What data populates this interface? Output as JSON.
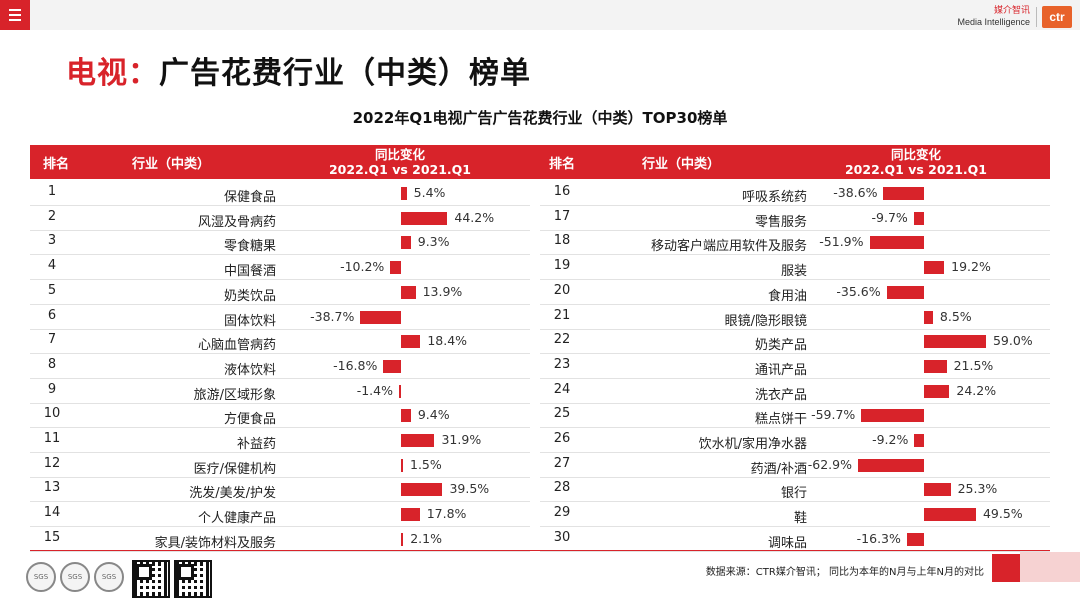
{
  "header": {
    "brand_cn": "媒介智讯",
    "brand_en": "Media Intelligence",
    "logo_text": "ctr"
  },
  "page_title": {
    "prefix": "电视：",
    "main": "广告花费行业（中类）榜单"
  },
  "chart_title": "2022年Q1电视广告广告花费行业（中类）TOP30榜单",
  "table": {
    "col_rank": "排名",
    "col_category": "行业（中类）",
    "col_change_line1": "同比变化",
    "col_change_line2": "2022.Q1 vs 2021.Q1"
  },
  "chart_data": {
    "type": "bar",
    "title": "2022年Q1电视广告广告花费行业（中类）TOP30榜单",
    "ylabel": "同比变化 2022.Q1 vs 2021.Q1",
    "ylim": [
      -70,
      70
    ],
    "left": [
      {
        "rank": "1",
        "category": "保健食品",
        "value": 5.4,
        "label": "5.4%"
      },
      {
        "rank": "2",
        "category": "风湿及骨病药",
        "value": 44.2,
        "label": "44.2%"
      },
      {
        "rank": "3",
        "category": "零食糖果",
        "value": 9.3,
        "label": "9.3%"
      },
      {
        "rank": "4",
        "category": "中国餐酒",
        "value": -10.2,
        "label": "-10.2%"
      },
      {
        "rank": "5",
        "category": "奶类饮品",
        "value": 13.9,
        "label": "13.9%"
      },
      {
        "rank": "6",
        "category": "固体饮料",
        "value": -38.7,
        "label": "-38.7%"
      },
      {
        "rank": "7",
        "category": "心脑血管病药",
        "value": 18.4,
        "label": "18.4%"
      },
      {
        "rank": "8",
        "category": "液体饮料",
        "value": -16.8,
        "label": "-16.8%"
      },
      {
        "rank": "9",
        "category": "旅游/区域形象",
        "value": -1.4,
        "label": "-1.4%"
      },
      {
        "rank": "10",
        "category": "方便食品",
        "value": 9.4,
        "label": "9.4%"
      },
      {
        "rank": "11",
        "category": "补益药",
        "value": 31.9,
        "label": "31.9%"
      },
      {
        "rank": "12",
        "category": "医疗/保健机构",
        "value": 1.5,
        "label": "1.5%"
      },
      {
        "rank": "13",
        "category": "洗发/美发/护发",
        "value": 39.5,
        "label": "39.5%"
      },
      {
        "rank": "14",
        "category": "个人健康产品",
        "value": 17.8,
        "label": "17.8%"
      },
      {
        "rank": "15",
        "category": "家具/装饰材料及服务",
        "value": 2.1,
        "label": "2.1%"
      }
    ],
    "right": [
      {
        "rank": "16",
        "category": "呼吸系统药",
        "value": -38.6,
        "label": "-38.6%"
      },
      {
        "rank": "17",
        "category": "零售服务",
        "value": -9.7,
        "label": "-9.7%"
      },
      {
        "rank": "18",
        "category": "移动客户端应用软件及服务",
        "value": -51.9,
        "label": "-51.9%"
      },
      {
        "rank": "19",
        "category": "服装",
        "value": 19.2,
        "label": "19.2%"
      },
      {
        "rank": "20",
        "category": "食用油",
        "value": -35.6,
        "label": "-35.6%"
      },
      {
        "rank": "21",
        "category": "眼镜/隐形眼镜",
        "value": 8.5,
        "label": "8.5%"
      },
      {
        "rank": "22",
        "category": "奶类产品",
        "value": 59.0,
        "label": "59.0%"
      },
      {
        "rank": "23",
        "category": "通讯产品",
        "value": 21.5,
        "label": "21.5%"
      },
      {
        "rank": "24",
        "category": "洗衣产品",
        "value": 24.2,
        "label": "24.2%"
      },
      {
        "rank": "25",
        "category": "糕点饼干",
        "value": -59.7,
        "label": "-59.7%"
      },
      {
        "rank": "26",
        "category": "饮水机/家用净水器",
        "value": -9.2,
        "label": "-9.2%"
      },
      {
        "rank": "27",
        "category": "药酒/补酒",
        "value": -62.9,
        "label": "-62.9%"
      },
      {
        "rank": "28",
        "category": "银行",
        "value": 25.3,
        "label": "25.3%"
      },
      {
        "rank": "29",
        "category": "鞋",
        "value": 49.5,
        "label": "49.5%"
      },
      {
        "rank": "30",
        "category": "调味品",
        "value": -16.3,
        "label": "-16.3%"
      }
    ]
  },
  "footer": {
    "source": "数据来源：CTR媒介智讯；  同比为本年的N月与上年N月的对比",
    "badge_label": "SGS"
  },
  "colors": {
    "accent": "#d8232a",
    "logo": "#e8622a"
  }
}
